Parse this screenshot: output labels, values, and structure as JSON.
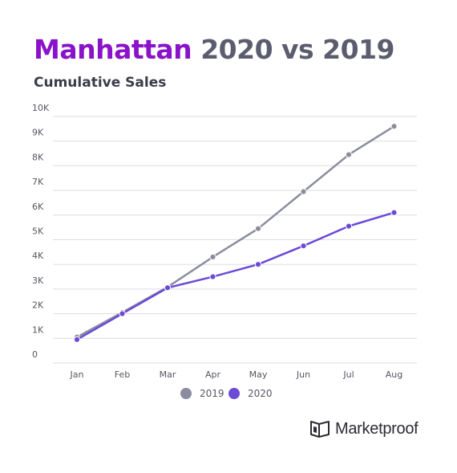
{
  "header": {
    "title_accent": "Manhattan",
    "title_rest": "2020 vs 2019",
    "subtitle": "Cumulative Sales"
  },
  "chart_data": {
    "type": "line",
    "title": "Manhattan 2020 vs 2019",
    "subtitle": "Cumulative Sales",
    "xlabel": "",
    "ylabel": "",
    "categories": [
      "Jan",
      "Feb",
      "Mar",
      "Apr",
      "May",
      "Jun",
      "Jul",
      "Aug"
    ],
    "yticks": [
      0,
      1000,
      2000,
      3000,
      4000,
      5000,
      6000,
      7000,
      8000,
      9000,
      10000
    ],
    "ytick_labels": [
      "0",
      "1K",
      "2K",
      "3K",
      "4K",
      "5K",
      "6K",
      "7K",
      "8K",
      "9K",
      "10K"
    ],
    "ylim": [
      0,
      10000
    ],
    "grid": true,
    "legend": "bottom-center",
    "series": [
      {
        "name": "2019",
        "color": "#8b8d9e",
        "values": [
          1050,
          2050,
          3080,
          4300,
          5450,
          6950,
          8450,
          9600
        ]
      },
      {
        "name": "2020",
        "color": "#6c4ad6",
        "values": [
          950,
          2000,
          3050,
          3500,
          4000,
          4750,
          5550,
          6100
        ]
      }
    ]
  },
  "brand": {
    "logo_icon": "marketproof-logo-icon",
    "name": "Marketproof"
  }
}
